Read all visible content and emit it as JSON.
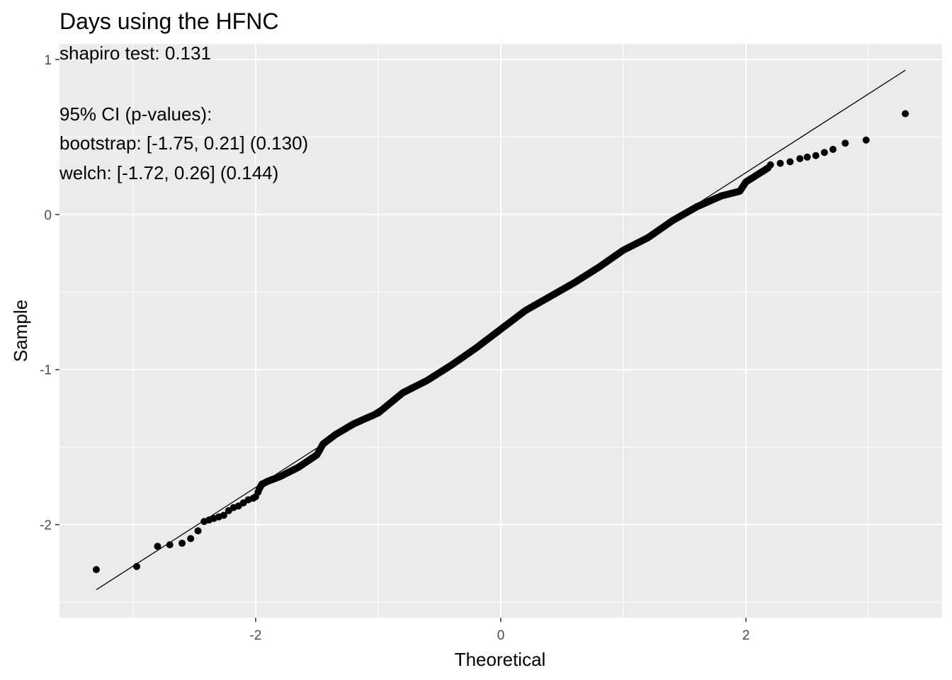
{
  "chart_data": {
    "type": "scatter",
    "subtype": "qq-plot",
    "title": "Days using the HFNC",
    "xlabel": "Theoretical",
    "ylabel": "Sample",
    "annotations": [
      "shapiro test: 0.131",
      "",
      "95% CI (p-values):",
      "bootstrap: [-1.75, 0.21] (0.130)",
      "welch: [-1.72, 0.26] (0.144)"
    ],
    "xlim": [
      -3.6,
      3.6
    ],
    "ylim": [
      -2.6,
      1.1
    ],
    "x_ticks": [
      -2,
      0,
      2
    ],
    "x_tick_labels": [
      "-2",
      "0",
      "2"
    ],
    "y_ticks": [
      -2,
      -1,
      0,
      1
    ],
    "y_tick_labels": [
      "-2",
      "-1",
      "0",
      "1"
    ],
    "grid": true,
    "panel_background": "#ebebeb",
    "point_color": "#000000",
    "reference_line": {
      "x": [
        -3.3,
        3.3
      ],
      "y": [
        -2.42,
        0.93
      ]
    },
    "points": {
      "x": [
        -3.3,
        -2.97,
        -2.8,
        -2.7,
        -2.6,
        -2.53,
        -2.47,
        -2.42,
        -2.38,
        -2.34,
        -2.3,
        -2.26,
        -2.22,
        -2.18,
        -2.14,
        -2.1,
        -2.06,
        -2.02,
        -2.0,
        -1.98
      ],
      "y": [
        -2.29,
        -2.27,
        -2.14,
        -2.13,
        -2.12,
        -2.09,
        -2.04,
        -1.98,
        -1.97,
        -1.96,
        -1.95,
        -1.94,
        -1.91,
        -1.89,
        -1.88,
        -1.86,
        -1.84,
        -1.83,
        -1.82,
        -1.79
      ],
      "tail_x": [
        2.2,
        2.28,
        2.36,
        2.44,
        2.5,
        2.57,
        2.64,
        2.71,
        2.81,
        2.98,
        3.3
      ],
      "tail_y": [
        0.32,
        0.33,
        0.34,
        0.36,
        0.37,
        0.38,
        0.4,
        0.42,
        0.46,
        0.48,
        0.65
      ],
      "body": {
        "n": 600,
        "x_range": [
          -1.97,
          2.18
        ],
        "knots": [
          [
            -1.97,
            -1.77
          ],
          [
            -1.95,
            -1.74
          ],
          [
            -1.9,
            -1.72
          ],
          [
            -1.8,
            -1.69
          ],
          [
            -1.65,
            -1.63
          ],
          [
            -1.5,
            -1.55
          ],
          [
            -1.45,
            -1.48
          ],
          [
            -1.35,
            -1.42
          ],
          [
            -1.2,
            -1.35
          ],
          [
            -1.0,
            -1.28
          ],
          [
            -0.8,
            -1.15
          ],
          [
            -0.6,
            -1.07
          ],
          [
            -0.4,
            -0.97
          ],
          [
            -0.2,
            -0.86
          ],
          [
            0.0,
            -0.74
          ],
          [
            0.2,
            -0.62
          ],
          [
            0.4,
            -0.53
          ],
          [
            0.6,
            -0.44
          ],
          [
            0.8,
            -0.34
          ],
          [
            1.0,
            -0.23
          ],
          [
            1.2,
            -0.15
          ],
          [
            1.4,
            -0.04
          ],
          [
            1.6,
            0.05
          ],
          [
            1.8,
            0.12
          ],
          [
            1.95,
            0.15
          ],
          [
            2.0,
            0.21
          ],
          [
            2.1,
            0.26
          ],
          [
            2.18,
            0.3
          ]
        ]
      }
    }
  }
}
